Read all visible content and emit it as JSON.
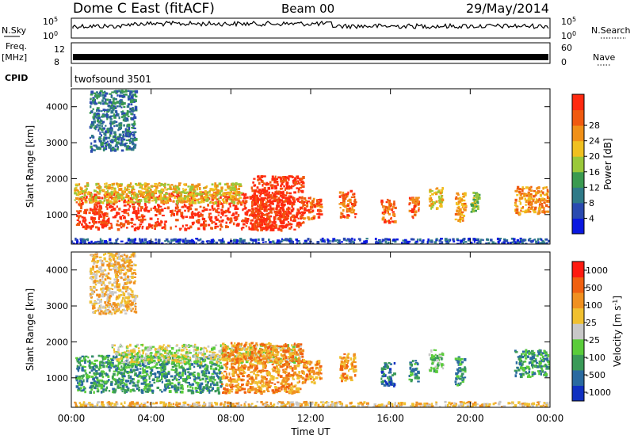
{
  "header": {
    "station": "Dome C East (fitACF)",
    "beam": "Beam 00",
    "date": "29/May/2014"
  },
  "strips": {
    "nsky_label": "N.Sky",
    "nsky_top": "10^5",
    "nsky_bottom": "10^0",
    "nsearch_label": "N.Search",
    "nsearch_top": "10^5",
    "nsearch_bottom": "10^0",
    "freq_label": "Freq.",
    "freq_unit": "[MHz]",
    "freq_top": "12",
    "freq_bottom": "8",
    "nave_label": "Nave",
    "nave_top": "60",
    "nave_bottom": "0",
    "cpid_label": "CPID",
    "cpid_text": "twofsound 3501"
  },
  "chart_data": [
    {
      "type": "heatmap",
      "ylabel": "Slant Range [km]",
      "xlabel": "Time UT",
      "x_ticks": [
        "00:00",
        "04:00",
        "08:00",
        "12:00",
        "16:00",
        "20:00",
        "00:00"
      ],
      "x_range_hours": [
        0,
        24
      ],
      "y_ticks": [
        1000,
        2000,
        3000,
        4000
      ],
      "ylim": [
        180,
        4500
      ],
      "colorbar": {
        "label": "Power [dB]",
        "ticks": [
          "4",
          "8",
          "12",
          "16",
          "20",
          "24",
          "28"
        ],
        "colors": [
          "#0a18e0",
          "#2a4ab0",
          "#2f7a88",
          "#3a9a50",
          "#9ac83a",
          "#f0c020",
          "#f09018",
          "#f05a10",
          "#ff2a10"
        ]
      },
      "regions": [
        {
          "t0": 0.2,
          "t1": 11.0,
          "r0": 620,
          "r1": 1650,
          "level": 8
        },
        {
          "t0": 0.1,
          "t1": 8.5,
          "r0": 1350,
          "r1": 1900,
          "level": 5
        },
        {
          "t0": 9.0,
          "t1": 11.6,
          "r0": 600,
          "r1": 2100,
          "level": 8
        },
        {
          "t0": 11.6,
          "t1": 12.5,
          "r0": 900,
          "r1": 1500,
          "level": 7
        },
        {
          "t0": 13.4,
          "t1": 14.2,
          "r0": 950,
          "r1": 1700,
          "level": 7
        },
        {
          "t0": 15.5,
          "t1": 16.2,
          "r0": 800,
          "r1": 1450,
          "level": 7
        },
        {
          "t0": 16.9,
          "t1": 17.4,
          "r0": 900,
          "r1": 1500,
          "level": 7
        },
        {
          "t0": 17.9,
          "t1": 18.6,
          "r0": 1200,
          "r1": 1800,
          "level": 5
        },
        {
          "t0": 19.2,
          "t1": 19.7,
          "r0": 800,
          "r1": 1650,
          "level": 6
        },
        {
          "t0": 20.0,
          "t1": 20.4,
          "r0": 1100,
          "r1": 1650,
          "level": 4
        },
        {
          "t0": 22.2,
          "t1": 23.9,
          "r0": 1050,
          "r1": 1800,
          "level": 6
        },
        {
          "t0": 0.9,
          "t1": 3.2,
          "r0": 2800,
          "r1": 4500,
          "level": 2
        },
        {
          "t0": 0.0,
          "t1": 24.0,
          "r0": 200,
          "r1": 360,
          "level": 1
        }
      ]
    },
    {
      "type": "heatmap",
      "ylabel": "Slant Range [km]",
      "xlabel": "Time UT",
      "x_ticks": [
        "00:00",
        "04:00",
        "08:00",
        "12:00",
        "16:00",
        "20:00",
        "00:00"
      ],
      "x_range_hours": [
        0,
        24
      ],
      "y_ticks": [
        1000,
        2000,
        3000,
        4000
      ],
      "ylim": [
        180,
        4500
      ],
      "colorbar": {
        "label": "Velocity [m s^-1]",
        "ticks": [
          "1000",
          "500",
          "100",
          "25",
          "-25",
          "-100",
          "-500",
          "-1000"
        ],
        "colors": [
          "#1030c0",
          "#2a6aa0",
          "#3a9a58",
          "#5acc3a",
          "#c8c8c8",
          "#f0c030",
          "#f09020",
          "#f06010",
          "#ff1a10"
        ]
      },
      "regions": [
        {
          "t0": 0.2,
          "t1": 7.5,
          "r0": 620,
          "r1": 1650,
          "level": 2
        },
        {
          "t0": 2.0,
          "t1": 11.5,
          "r0": 1450,
          "r1": 1950,
          "level": 4
        },
        {
          "t0": 7.5,
          "t1": 11.6,
          "r0": 600,
          "r1": 2000,
          "level": 6
        },
        {
          "t0": 11.6,
          "t1": 12.5,
          "r0": 900,
          "r1": 1500,
          "level": 6
        },
        {
          "t0": 13.4,
          "t1": 14.2,
          "r0": 950,
          "r1": 1700,
          "level": 6
        },
        {
          "t0": 15.5,
          "t1": 16.2,
          "r0": 800,
          "r1": 1450,
          "level": 1
        },
        {
          "t0": 16.9,
          "t1": 17.4,
          "r0": 900,
          "r1": 1500,
          "level": 2
        },
        {
          "t0": 17.9,
          "t1": 18.6,
          "r0": 1200,
          "r1": 1800,
          "level": 3
        },
        {
          "t0": 19.2,
          "t1": 19.7,
          "r0": 800,
          "r1": 1650,
          "level": 2
        },
        {
          "t0": 22.2,
          "t1": 23.9,
          "r0": 1050,
          "r1": 1800,
          "level": 2
        },
        {
          "t0": 0.9,
          "t1": 3.2,
          "r0": 2800,
          "r1": 4500,
          "level": 5
        },
        {
          "t0": 0.0,
          "t1": 24.0,
          "r0": 200,
          "r1": 360,
          "level": 5
        }
      ]
    }
  ]
}
